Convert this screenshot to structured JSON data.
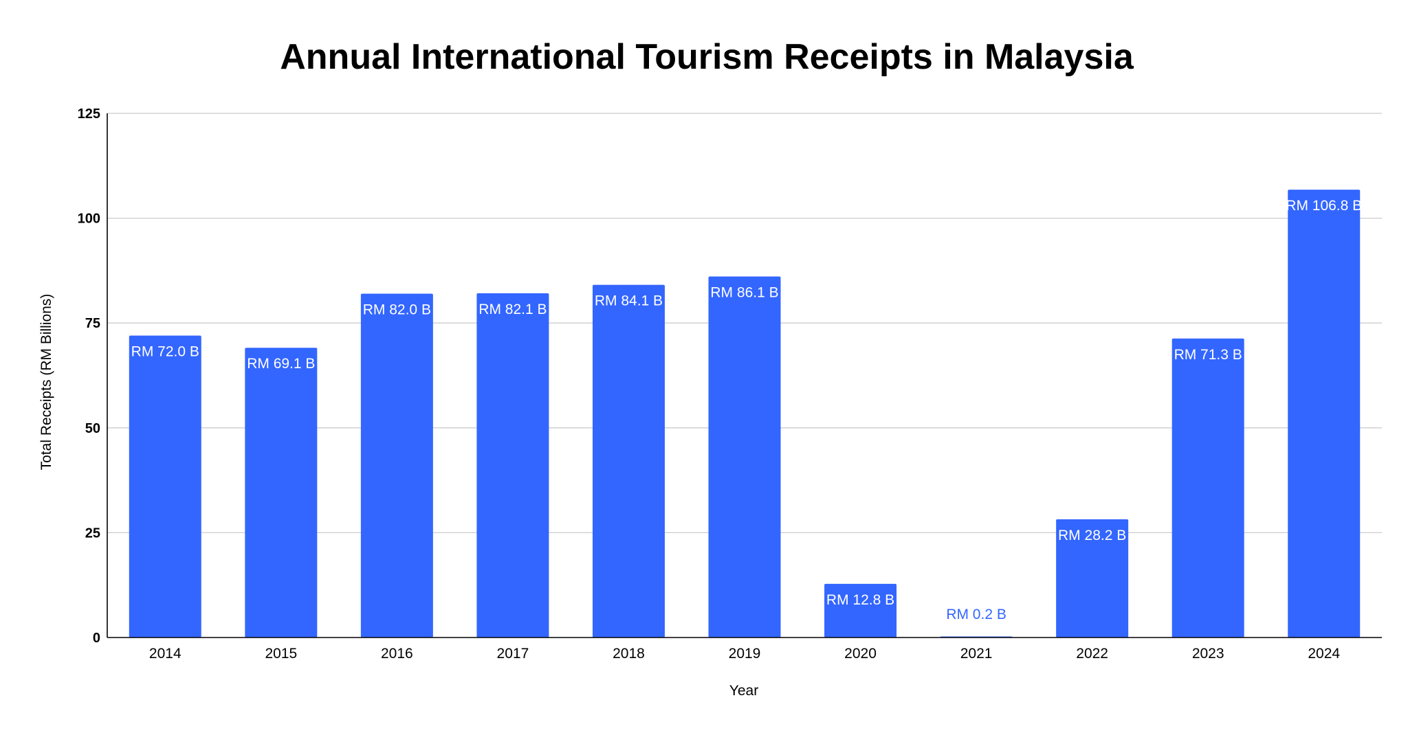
{
  "chart_data": {
    "type": "bar",
    "title": "Annual International Tourism Receipts in Malaysia",
    "xlabel": "Year",
    "ylabel": "Total Receipts (RM Billions)",
    "categories": [
      "2014",
      "2015",
      "2016",
      "2017",
      "2018",
      "2019",
      "2020",
      "2021",
      "2022",
      "2023",
      "2024"
    ],
    "values": [
      72.0,
      69.1,
      82.0,
      82.1,
      84.1,
      86.1,
      12.8,
      0.2,
      28.2,
      71.3,
      106.8
    ],
    "data_labels": [
      "RM 72.0 B",
      "RM 69.1 B",
      "RM 82.0 B",
      "RM 82.1 B",
      "RM 84.1 B",
      "RM 86.1 B",
      "RM 12.8 B",
      "RM 0.2 B",
      "RM 28.2 B",
      "RM 71.3 B",
      "RM 106.8 B"
    ],
    "ylim": [
      0,
      125
    ],
    "yticks": [
      0,
      25,
      50,
      75,
      100,
      125
    ],
    "grid": true,
    "legend": "none",
    "colors": {
      "bar": "#3366ff",
      "label_inside": "#ffffff",
      "label_outside": "#3366ff"
    }
  }
}
